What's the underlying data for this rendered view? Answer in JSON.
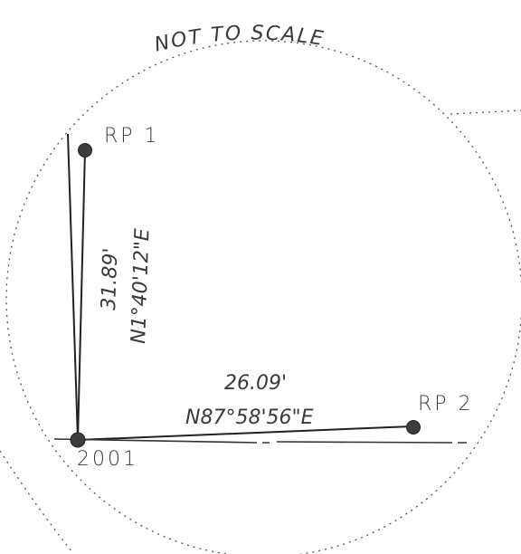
{
  "note": "NOT TO SCALE",
  "points": {
    "rp1": "RP 1",
    "rp2": "RP 2",
    "station": "2001"
  },
  "courses": {
    "to_rp1": {
      "distance": "31.89'",
      "bearing": "N1°40'12\"E"
    },
    "to_rp2": {
      "distance": "26.09'",
      "bearing": "N87°58'56\"E"
    }
  }
}
